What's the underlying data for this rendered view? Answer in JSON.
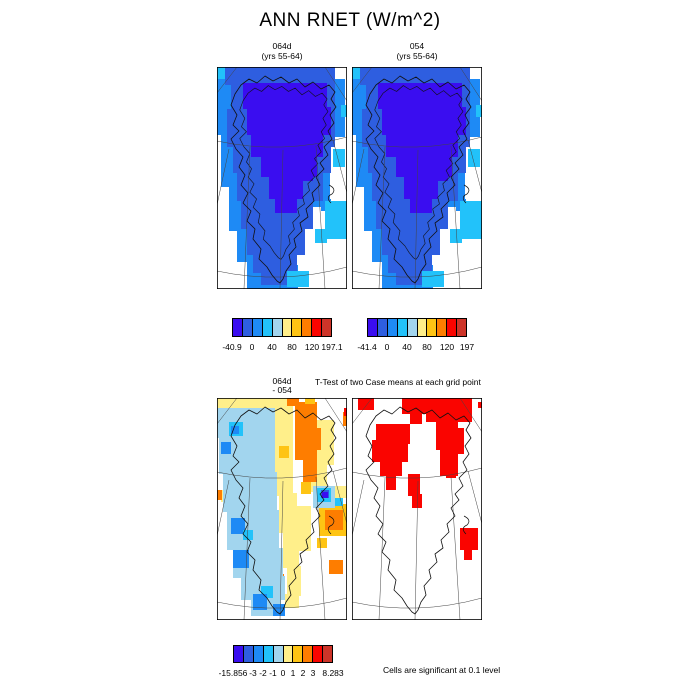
{
  "title": "ANN RNET (W/m^2)",
  "panels": {
    "case1": {
      "name": "064d",
      "years": "(yrs 55-64)"
    },
    "case2": {
      "name": "054",
      "years": "(yrs 55-64)"
    },
    "diff": {
      "line1": "064d",
      "line2": "- 054"
    },
    "ttest": {
      "title": "T-Test of two Case means at each grid point"
    }
  },
  "note": "Cells are significant at 0.1 level",
  "chart_data": {
    "type": "heatmap",
    "title": "ANN RNET (W/m^2)",
    "variable": "RNET",
    "units": "W/m^2",
    "season": "ANN",
    "palette": [
      "#3a0df0",
      "#2e5ee0",
      "#1e8af5",
      "#22c2fa",
      "#a2d5ee",
      "#ffef8a",
      "#fec414",
      "#fe7d00",
      "#fa0400",
      "#cd3429"
    ],
    "panels": [
      {
        "id": "case1",
        "label": "064d",
        "years": "yrs 55-64",
        "colorbar": "case1"
      },
      {
        "id": "case2",
        "label": "054",
        "years": "yrs 55-64",
        "colorbar": "case2"
      },
      {
        "id": "diff",
        "label": "064d - 054",
        "colorbar": "diff"
      },
      {
        "id": "ttest",
        "label": "T-Test of two Case means at each grid point",
        "note": "Cells are significant at 0.1 level",
        "significance_level": 0.1
      }
    ],
    "colorbars": {
      "case1": {
        "min": -40.9,
        "max": 197.1,
        "ticks": [
          {
            "t": "-40.9",
            "p": 0
          },
          {
            "t": "0",
            "p": 0.2
          },
          {
            "t": "40",
            "p": 0.4
          },
          {
            "t": "80",
            "p": 0.6
          },
          {
            "t": "120",
            "p": 0.8
          },
          {
            "t": "197.1",
            "p": 1
          }
        ]
      },
      "case2": {
        "min": -41.4,
        "max": 197,
        "ticks": [
          {
            "t": "-41.4",
            "p": 0
          },
          {
            "t": "0",
            "p": 0.2
          },
          {
            "t": "40",
            "p": 0.4
          },
          {
            "t": "80",
            "p": 0.6
          },
          {
            "t": "120",
            "p": 0.8
          },
          {
            "t": "197",
            "p": 1
          }
        ]
      },
      "diff": {
        "min": -15.856,
        "max": 8.283,
        "ticks": [
          {
            "t": "-15.856",
            "p": 0
          },
          {
            "t": "-3",
            "p": 0.2
          },
          {
            "t": "-2",
            "p": 0.3
          },
          {
            "t": "-1",
            "p": 0.4
          },
          {
            "t": "0",
            "p": 0.5
          },
          {
            "t": "1",
            "p": 0.6
          },
          {
            "t": "2",
            "p": 0.7
          },
          {
            "t": "3",
            "p": 0.8
          },
          {
            "t": "8.283",
            "p": 1
          }
        ]
      }
    },
    "maps": {
      "case": [
        [
          2,
          0,
          0,
          30,
          20
        ],
        [
          2,
          0,
          18,
          22,
          50
        ],
        [
          2,
          4,
          60,
          20,
          60
        ],
        [
          2,
          12,
          112,
          20,
          52
        ],
        [
          2,
          20,
          150,
          22,
          45
        ],
        [
          2,
          30,
          188,
          42,
          34
        ],
        [
          2,
          55,
          198,
          26,
          24
        ],
        [
          2,
          112,
          12,
          16,
          58
        ],
        [
          2,
          95,
          98,
          18,
          42
        ],
        [
          2,
          104,
          132,
          10,
          12
        ],
        [
          1,
          8,
          0,
          110,
          18
        ],
        [
          1,
          14,
          14,
          104,
          30
        ],
        [
          1,
          10,
          42,
          108,
          38
        ],
        [
          1,
          16,
          78,
          98,
          28
        ],
        [
          1,
          20,
          104,
          86,
          30
        ],
        [
          1,
          24,
          132,
          72,
          30
        ],
        [
          1,
          30,
          160,
          58,
          28
        ],
        [
          1,
          36,
          184,
          44,
          22
        ],
        [
          1,
          44,
          202,
          28,
          16
        ],
        [
          0,
          26,
          16,
          84,
          26
        ],
        [
          0,
          30,
          40,
          84,
          28
        ],
        [
          0,
          34,
          66,
          72,
          24
        ],
        [
          0,
          44,
          88,
          56,
          22
        ],
        [
          0,
          52,
          108,
          34,
          24
        ],
        [
          0,
          58,
          130,
          22,
          16
        ],
        [
          0,
          84,
          100,
          12,
          14
        ],
        [
          3,
          0,
          0,
          8,
          12
        ],
        [
          3,
          116,
          82,
          12,
          18
        ],
        [
          3,
          108,
          134,
          22,
          38
        ],
        [
          3,
          98,
          162,
          12,
          14
        ],
        [
          3,
          70,
          204,
          22,
          16
        ],
        [
          3,
          124,
          38,
          6,
          12
        ]
      ],
      "diff": [
        [
          5,
          0,
          0,
          70,
          12
        ],
        [
          5,
          56,
          8,
          20,
          90
        ],
        [
          5,
          62,
          95,
          18,
          40
        ],
        [
          5,
          66,
          130,
          16,
          40
        ],
        [
          5,
          70,
          168,
          14,
          30
        ],
        [
          5,
          95,
          22,
          22,
          45
        ],
        [
          5,
          92,
          62,
          18,
          32
        ],
        [
          5,
          78,
          108,
          16,
          45
        ],
        [
          5,
          4,
          92,
          12,
          12
        ],
        [
          5,
          68,
          196,
          14,
          14
        ],
        [
          5,
          118,
          88,
          12,
          12
        ],
        [
          7,
          70,
          0,
          12,
          8
        ],
        [
          7,
          78,
          4,
          22,
          58
        ],
        [
          7,
          86,
          58,
          14,
          26
        ],
        [
          7,
          92,
          30,
          12,
          22
        ],
        [
          6,
          102,
          106,
          28,
          32
        ],
        [
          7,
          108,
          112,
          18,
          20
        ],
        [
          7,
          112,
          162,
          14,
          14
        ],
        [
          7,
          126,
          14,
          4,
          14
        ],
        [
          8,
          127,
          10,
          3,
          8
        ],
        [
          7,
          55,
          176,
          12,
          10
        ],
        [
          7,
          0,
          92,
          5,
          10
        ],
        [
          6,
          62,
          48,
          10,
          12
        ],
        [
          6,
          84,
          84,
          10,
          12
        ],
        [
          6,
          88,
          0,
          10,
          6
        ],
        [
          6,
          100,
          140,
          10,
          10
        ],
        [
          4,
          0,
          10,
          58,
          30
        ],
        [
          4,
          2,
          36,
          56,
          40
        ],
        [
          4,
          6,
          74,
          54,
          40
        ],
        [
          4,
          10,
          112,
          52,
          40
        ],
        [
          4,
          16,
          150,
          50,
          30
        ],
        [
          4,
          24,
          178,
          44,
          24
        ],
        [
          4,
          34,
          200,
          30,
          18
        ],
        [
          4,
          96,
          88,
          22,
          22
        ],
        [
          3,
          12,
          24,
          14,
          14
        ],
        [
          2,
          14,
          28,
          8,
          8
        ],
        [
          2,
          4,
          44,
          10,
          12
        ],
        [
          2,
          14,
          120,
          14,
          16
        ],
        [
          3,
          26,
          132,
          10,
          10
        ],
        [
          2,
          16,
          152,
          16,
          18
        ],
        [
          3,
          44,
          188,
          12,
          12
        ],
        [
          2,
          36,
          196,
          14,
          16
        ],
        [
          2,
          56,
          206,
          12,
          12
        ],
        [
          3,
          100,
          90,
          14,
          14
        ],
        [
          1,
          104,
          92,
          8,
          8
        ],
        [
          0,
          105,
          94,
          6,
          6
        ],
        [
          3,
          118,
          100,
          8,
          8
        ]
      ],
      "ttest": [
        [
          8,
          6,
          0,
          16,
          12
        ],
        [
          8,
          50,
          0,
          26,
          16
        ],
        [
          8,
          58,
          14,
          12,
          12
        ],
        [
          8,
          74,
          0,
          46,
          24
        ],
        [
          8,
          84,
          22,
          22,
          30
        ],
        [
          8,
          100,
          30,
          12,
          26
        ],
        [
          8,
          88,
          50,
          18,
          28
        ],
        [
          8,
          24,
          26,
          34,
          20
        ],
        [
          8,
          20,
          42,
          36,
          22
        ],
        [
          8,
          28,
          62,
          22,
          16
        ],
        [
          8,
          34,
          78,
          10,
          14
        ],
        [
          8,
          56,
          76,
          12,
          22
        ],
        [
          8,
          60,
          96,
          10,
          14
        ],
        [
          8,
          94,
          68,
          10,
          12
        ],
        [
          8,
          108,
          130,
          18,
          22
        ],
        [
          8,
          112,
          150,
          8,
          12
        ],
        [
          8,
          126,
          4,
          4,
          6
        ]
      ]
    }
  }
}
